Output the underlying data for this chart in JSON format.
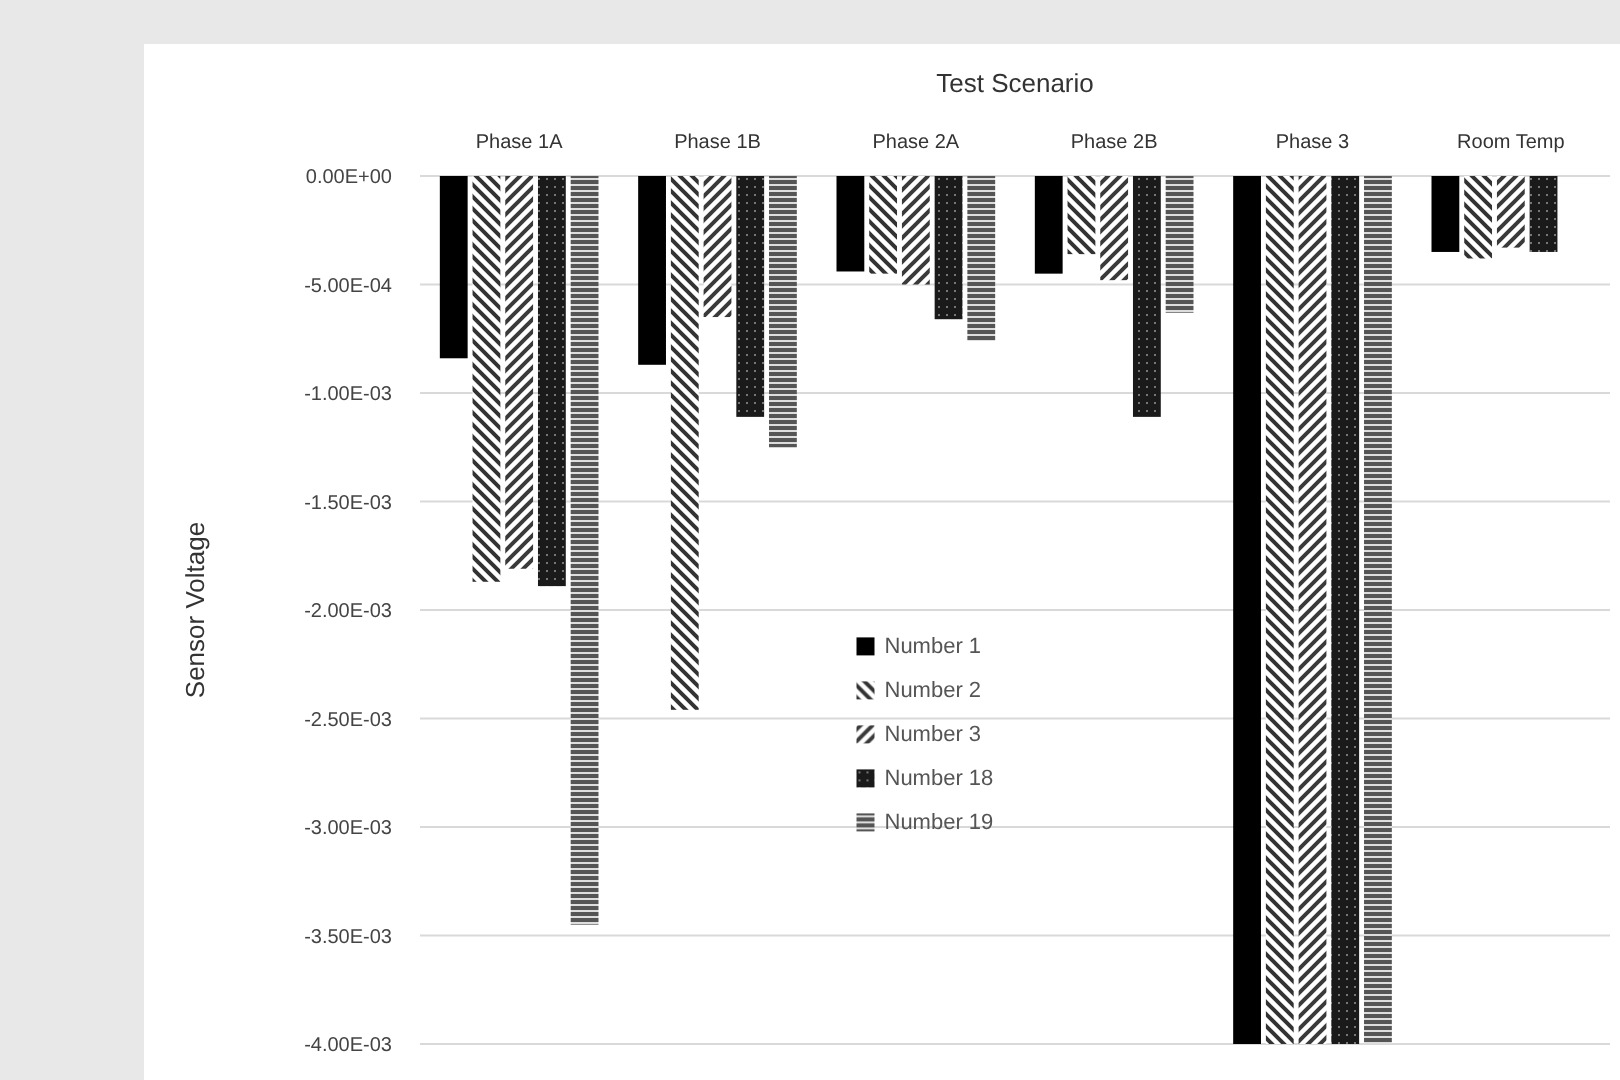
{
  "chart_data": {
    "type": "bar",
    "title": "Test Scenario",
    "ylabel": "Sensor Voltage",
    "categories": [
      "Phase 1A",
      "Phase 1B",
      "Phase 2A",
      "Phase 2B",
      "Phase 3",
      "Room Temp"
    ],
    "series": [
      {
        "name": "Number 1",
        "color": "#000000",
        "values": [
          -0.00084,
          -0.00087,
          -0.00044,
          -0.00045,
          -0.004,
          -0.00035
        ]
      },
      {
        "name": "Number 2",
        "color": "#333333",
        "values": [
          -0.00187,
          -0.00246,
          -0.00045,
          -0.00036,
          -0.004,
          -0.00038
        ]
      },
      {
        "name": "Number 3",
        "color": "#3a3a3a",
        "values": [
          -0.00181,
          -0.00065,
          -0.0005,
          -0.00048,
          -0.004,
          -0.00033
        ]
      },
      {
        "name": "Number 18",
        "color": "#1a1a1a",
        "values": [
          -0.00189,
          -0.00111,
          -0.00066,
          -0.00111,
          -0.004,
          -0.00035
        ]
      },
      {
        "name": "Number 19",
        "color": "#555555",
        "values": [
          -0.00345,
          -0.00125,
          -0.00076,
          -0.00063,
          -0.004,
          null
        ]
      }
    ],
    "ylim": [
      -0.004,
      0
    ],
    "yticks": [
      {
        "value": 0,
        "label": "0.00E+00"
      },
      {
        "value": -0.0005,
        "label": "-5.00E-04"
      },
      {
        "value": -0.001,
        "label": "-1.00E-03"
      },
      {
        "value": -0.0015,
        "label": "-1.50E-03"
      },
      {
        "value": -0.002,
        "label": "-2.00E-03"
      },
      {
        "value": -0.0025,
        "label": "-2.50E-03"
      },
      {
        "value": -0.003,
        "label": "-3.00E-03"
      },
      {
        "value": -0.0035,
        "label": "-3.50E-03"
      },
      {
        "value": -0.004,
        "label": "-4.00E-03"
      }
    ],
    "grid": "y",
    "legend": "bottom"
  }
}
